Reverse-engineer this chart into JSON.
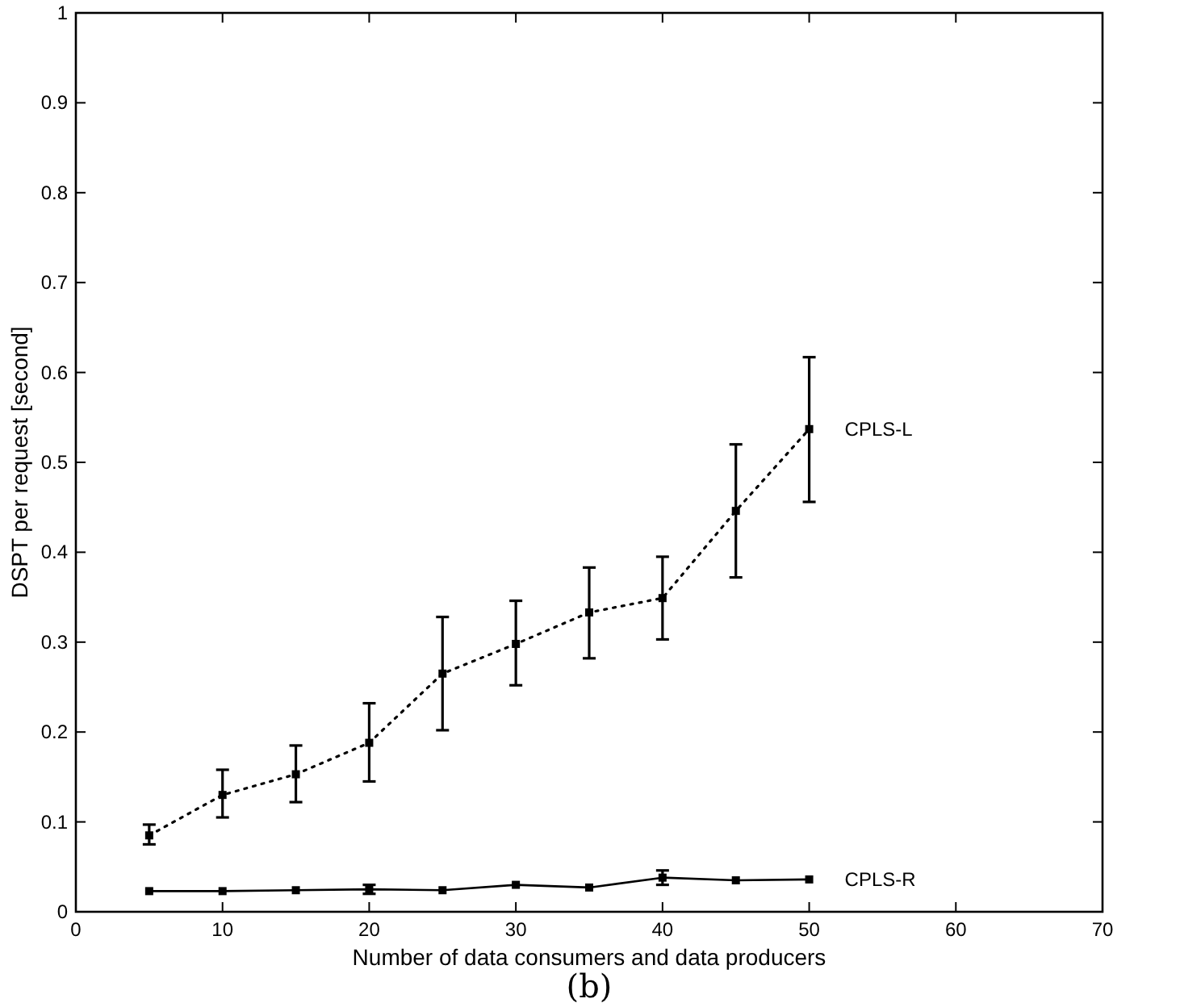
{
  "chart_data": {
    "type": "line",
    "xlabel": "Number of data consumers and data producers",
    "ylabel": "DSPT per request [second]",
    "x": [
      5,
      10,
      15,
      20,
      25,
      30,
      35,
      40,
      45,
      50
    ],
    "xlim": [
      0,
      70
    ],
    "xticks": [
      0,
      10,
      20,
      30,
      40,
      50,
      60,
      70
    ],
    "ylim": [
      0,
      1
    ],
    "yticks": [
      0,
      0.1,
      0.2,
      0.3,
      0.4,
      0.5,
      0.6,
      0.7,
      0.8,
      0.9,
      1
    ],
    "grid": false,
    "marker": "square",
    "series": [
      {
        "name": "CPLS-L",
        "color": "#000000",
        "line_style": "dotted",
        "values": [
          0.085,
          0.13,
          0.153,
          0.188,
          0.265,
          0.298,
          0.333,
          0.349,
          0.446,
          0.537
        ],
        "errors": [
          [
            0.075,
            0.097
          ],
          [
            0.105,
            0.158
          ],
          [
            0.122,
            0.185
          ],
          [
            0.145,
            0.232
          ],
          [
            0.202,
            0.328
          ],
          [
            0.252,
            0.346
          ],
          [
            0.282,
            0.383
          ],
          [
            0.303,
            0.395
          ],
          [
            0.372,
            0.52
          ],
          [
            0.456,
            0.617
          ]
        ]
      },
      {
        "name": "CPLS-R",
        "color": "#000000",
        "line_style": "solid",
        "values": [
          0.023,
          0.023,
          0.024,
          0.025,
          0.024,
          0.03,
          0.027,
          0.038,
          0.035,
          0.036
        ],
        "errors": [
          null,
          null,
          null,
          [
            0.02,
            0.03
          ],
          null,
          null,
          null,
          [
            0.03,
            0.046
          ],
          null,
          null
        ]
      }
    ],
    "annotations": [
      "(b)"
    ]
  }
}
